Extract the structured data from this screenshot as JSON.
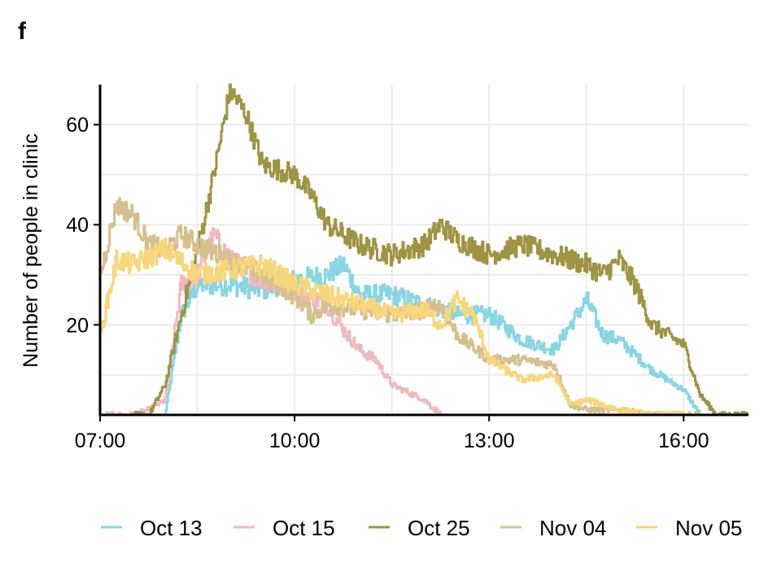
{
  "panel_label": "f",
  "chart_data": {
    "type": "line",
    "title": "",
    "xlabel": "",
    "ylabel": "Number of people in clinic",
    "xlim": [
      "07:00",
      "17:00"
    ],
    "ylim": [
      2,
      68
    ],
    "x_ticks": [
      "07:00",
      "10:00",
      "13:00",
      "16:00"
    ],
    "y_ticks": [
      20,
      40,
      60
    ],
    "grid": true,
    "legend_position": "bottom",
    "series": [
      {
        "name": "Oct 13",
        "color": "#86d6e3",
        "x": [
          "08:00",
          "08:15",
          "08:30",
          "09:00",
          "09:30",
          "10:00",
          "10:30",
          "10:45",
          "11:00",
          "11:30",
          "12:00",
          "12:30",
          "13:00",
          "13:30",
          "14:00",
          "14:30",
          "14:45",
          "15:00",
          "15:30",
          "16:00",
          "16:15"
        ],
        "y": [
          2,
          22,
          28,
          28,
          27,
          29,
          30,
          32,
          26,
          26,
          24,
          22,
          22,
          17,
          15,
          25,
          18,
          17,
          11,
          7,
          2
        ]
      },
      {
        "name": "Oct 15",
        "color": "#f1b8bd",
        "x": [
          "07:05",
          "07:30",
          "07:45",
          "08:00",
          "08:15",
          "08:30",
          "08:45",
          "09:00",
          "09:30",
          "10:00",
          "10:30",
          "10:45",
          "11:00",
          "11:15",
          "11:30",
          "12:00",
          "12:15"
        ],
        "y": [
          2,
          2,
          3,
          5,
          28,
          30,
          38,
          33,
          29,
          27,
          24,
          19,
          15,
          13,
          8,
          5,
          2
        ]
      },
      {
        "name": "Oct 25",
        "color": "#9e9443",
        "x": [
          "07:30",
          "07:45",
          "08:00",
          "08:15",
          "08:30",
          "08:45",
          "09:00",
          "09:15",
          "09:30",
          "10:00",
          "10:15",
          "10:30",
          "11:00",
          "11:30",
          "12:00",
          "12:15",
          "12:30",
          "13:00",
          "13:30",
          "14:00",
          "14:30",
          "14:45",
          "15:00",
          "15:15",
          "15:30",
          "16:00",
          "16:15",
          "16:30",
          "17:00"
        ],
        "y": [
          2,
          2,
          8,
          22,
          35,
          50,
          67,
          62,
          52,
          50,
          46,
          40,
          36,
          34,
          36,
          40,
          37,
          34,
          36,
          34,
          32,
          30,
          33,
          28,
          20,
          16,
          6,
          2,
          2
        ]
      },
      {
        "name": "Nov 04",
        "color": "#d5c08e",
        "x": [
          "07:00",
          "07:15",
          "07:30",
          "07:45",
          "08:00",
          "08:15",
          "08:30",
          "09:00",
          "09:30",
          "10:00",
          "10:15",
          "10:30",
          "11:00",
          "11:30",
          "12:00",
          "12:15",
          "12:30",
          "13:00",
          "13:30",
          "14:00",
          "14:15",
          "14:30",
          "15:00",
          "15:30",
          "16:00",
          "16:15"
        ],
        "y": [
          30,
          44,
          42,
          36,
          35,
          38,
          36,
          33,
          30,
          26,
          22,
          24,
          23,
          22,
          23,
          24,
          18,
          13,
          13,
          12,
          4,
          3,
          3,
          2,
          2,
          2
        ]
      },
      {
        "name": "Nov 05",
        "color": "#f8d67a",
        "x": [
          "07:00",
          "07:15",
          "07:30",
          "08:00",
          "08:30",
          "09:00",
          "09:30",
          "10:00",
          "10:30",
          "11:00",
          "11:30",
          "12:00",
          "12:15",
          "12:30",
          "12:45",
          "13:00",
          "13:30",
          "14:00",
          "14:15",
          "14:30",
          "15:00",
          "15:30",
          "16:00"
        ],
        "y": [
          18,
          33,
          32,
          35,
          30,
          31,
          32,
          28,
          26,
          24,
          22,
          23,
          20,
          25,
          22,
          13,
          9,
          10,
          4,
          5,
          3,
          2,
          2
        ]
      }
    ]
  }
}
